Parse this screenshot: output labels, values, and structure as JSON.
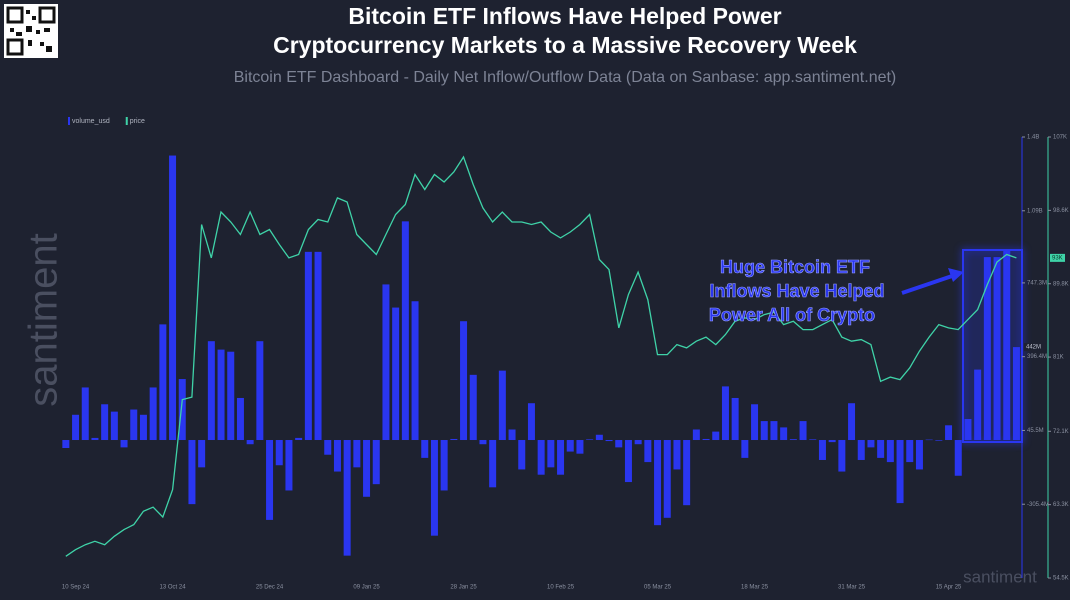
{
  "chart_data": {
    "type": "bar_line",
    "title": [
      "Bitcoin ETF Inflows Have Helped Power",
      "Cryptocurrency Markets to a Massive Recovery Week"
    ],
    "subtitle": "Bitcoin ETF Dashboard - Daily Net Inflow/Outflow Data (Data on Sanbase: app.santiment.net)",
    "watermark": "santiment",
    "annotation": [
      "Huge Bitcoin ETF",
      "Inflows Have Helped",
      "Power All of Crypto"
    ],
    "legend": "top-left",
    "grid": false,
    "categories": [
      null,
      "10 Sep 24",
      null,
      null,
      null,
      null,
      null,
      null,
      null,
      null,
      null,
      "13 Oct 24",
      null,
      null,
      null,
      null,
      null,
      null,
      null,
      null,
      null,
      "25 Dec 24",
      null,
      null,
      null,
      null,
      null,
      null,
      null,
      null,
      null,
      "09 Jan 25",
      null,
      null,
      null,
      null,
      null,
      null,
      null,
      null,
      null,
      "28 Jan 25",
      null,
      null,
      null,
      null,
      null,
      null,
      null,
      null,
      null,
      "10 Feb 25",
      null,
      null,
      null,
      null,
      null,
      null,
      null,
      null,
      null,
      "05 Mar 25",
      null,
      null,
      null,
      null,
      null,
      null,
      null,
      null,
      null,
      "18 Mar 25",
      null,
      null,
      null,
      null,
      null,
      null,
      null,
      null,
      null,
      "31 Mar 25",
      null,
      null,
      null,
      null,
      null,
      null,
      null,
      null,
      null,
      "15 Apr 25",
      null,
      null,
      null,
      null,
      null,
      null,
      null
    ],
    "series": [
      {
        "name": "volume_usd",
        "color": "#2a36f0",
        "axis": "y",
        "current": {
          "value": 442000000,
          "label": "442M"
        },
        "values": [
          -38000000,
          120000000,
          250000000,
          10000000,
          170000000,
          135000000,
          -35000000,
          145000000,
          120000000,
          250000000,
          550000000,
          1353000000,
          290000000,
          -305000000,
          -130000000,
          470000000,
          430000000,
          420000000,
          200000000,
          -20000000,
          470000000,
          -380000000,
          -120000000,
          -240000000,
          10000000,
          895000000,
          895000000,
          -70000000,
          -150000000,
          -550000000,
          -130000000,
          -270000000,
          -210000000,
          740000000,
          630000000,
          1040000000,
          660000000,
          -85000000,
          -455000000,
          -240000000,
          5000000,
          565000000,
          310000000,
          -20000000,
          -225000000,
          330000000,
          50000000,
          -140000000,
          175000000,
          -165000000,
          -130000000,
          -165000000,
          -55000000,
          -65000000,
          3000000,
          25000000,
          -5000000,
          -35000000,
          -200000000,
          -20000000,
          -105000000,
          -405000000,
          -370000000,
          -140000000,
          -310000000,
          50000000,
          5000000,
          40000000,
          255000000,
          200000000,
          -85000000,
          170000000,
          90000000,
          90000000,
          60000000,
          4000000,
          90000000,
          3000000,
          -95000000,
          -10000000,
          -150000000,
          175000000,
          -95000000,
          -35000000,
          -85000000,
          -105000000,
          -300000000,
          -105000000,
          -140000000,
          2000000,
          -3000000,
          70000000,
          -170000000,
          100000000,
          335000000,
          870000000,
          870000000,
          900000000,
          442000000
        ]
      },
      {
        "name": "price",
        "color": "#3fd3a8",
        "axis": "y2",
        "current": {
          "value": 92900,
          "label": "93K"
        },
        "values": [
          57100,
          57900,
          58500,
          58900,
          58500,
          59500,
          60300,
          60900,
          62500,
          63000,
          61800,
          65100,
          75900,
          76200,
          96900,
          92900,
          98400,
          97200,
          95700,
          98400,
          95700,
          96300,
          94500,
          92900,
          93300,
          96300,
          97500,
          97200,
          100100,
          99600,
          95700,
          94500,
          93300,
          95700,
          98100,
          99300,
          102900,
          101100,
          102900,
          102000,
          103200,
          105000,
          101700,
          98900,
          97200,
          98400,
          97200,
          97200,
          96900,
          97200,
          96000,
          95300,
          96000,
          96900,
          98100,
          92700,
          91500,
          84500,
          88500,
          91200,
          87900,
          81300,
          81300,
          82500,
          82100,
          82900,
          83400,
          82500,
          83700,
          85300,
          85700,
          85500,
          86100,
          86400,
          84900,
          85300,
          84300,
          84300,
          84900,
          85500,
          83400,
          82900,
          83100,
          82500,
          78100,
          78600,
          78300,
          79700,
          81700,
          83400,
          84900,
          84500,
          84300,
          85500,
          86700,
          89700,
          92400,
          93300,
          92900
        ]
      }
    ],
    "ylim": [
      -656300000,
      1441200000
    ],
    "yticks": [
      {
        "value": -305400000,
        "label": "-305.4M"
      },
      {
        "value": 45500000,
        "label": "45.5M"
      },
      {
        "value": 396400000,
        "label": "396.4M"
      },
      {
        "value": 747300000,
        "label": "747.3M"
      },
      {
        "value": 1090300000,
        "label": "1.09B"
      },
      {
        "value": 1441200000,
        "label": "1.4B"
      }
    ],
    "y2lim": [
      54500,
      107400
    ],
    "y2ticks": [
      {
        "value": 54500,
        "label": "54.5K"
      },
      {
        "value": 63300,
        "label": "63.3K"
      },
      {
        "value": 72100,
        "label": "72.1K"
      },
      {
        "value": 81000,
        "label": "81K"
      },
      {
        "value": 89800,
        "label": "89.8K"
      },
      {
        "value": 98600,
        "label": "98.6K"
      },
      {
        "value": 107400,
        "label": "107K"
      }
    ]
  }
}
